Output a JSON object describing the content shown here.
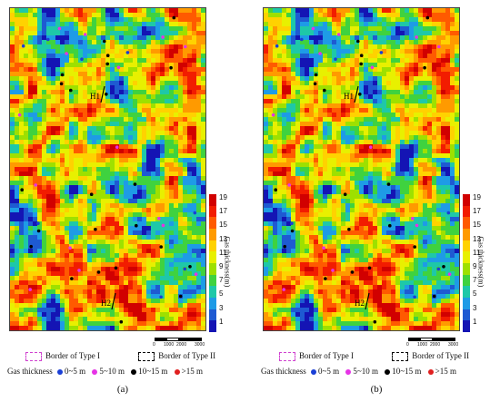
{
  "panels": [
    {
      "id": "a",
      "caption": "(a)",
      "wells": [
        "H1",
        "H2"
      ]
    },
    {
      "id": "b",
      "caption": "(b)",
      "wells": [
        "H1",
        "H2"
      ]
    }
  ],
  "colorbar": {
    "title": "Gas thickness(m)",
    "ticks": [
      "19",
      "17",
      "15",
      "13",
      "11",
      "9",
      "7",
      "5",
      "3",
      "1"
    ],
    "colors": [
      "#d10000",
      "#f21c00",
      "#ff5a00",
      "#ff9a00",
      "#ffd200",
      "#e8f000",
      "#9ee000",
      "#3fd23f",
      "#1ec8a8",
      "#1e9be6",
      "#1e5ad2",
      "#1414b4"
    ]
  },
  "scale_bar": {
    "labels": [
      "0",
      "1000",
      "2000",
      "3000"
    ]
  },
  "legend": {
    "border_type1": "Border of Type I",
    "border_type2": "Border of Type II",
    "gas_thickness_label": "Gas thickness",
    "classes": [
      {
        "label": "0~5 m",
        "color": "#1a3fd6"
      },
      {
        "label": "5~10 m",
        "color": "#e633e6"
      },
      {
        "label": "10~15 m",
        "color": "#000000"
      },
      {
        "label": ">15 m",
        "color": "#e02020"
      }
    ]
  }
}
